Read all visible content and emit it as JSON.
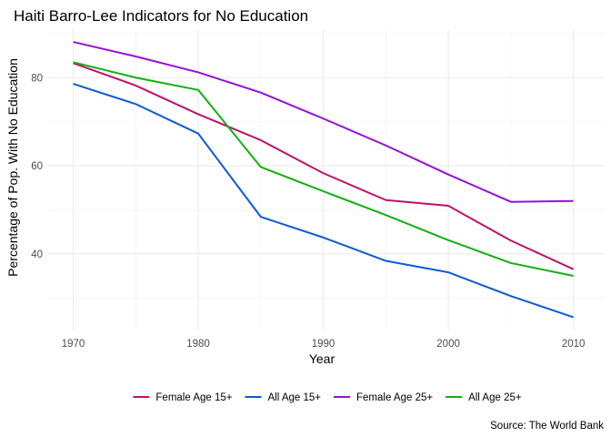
{
  "chart_data": {
    "type": "line",
    "title": "Haiti Barro-Lee Indicators for No Education",
    "xlabel": "Year",
    "ylabel": "Percentage of Pop. With No Education",
    "caption": "Source: The World Bank",
    "x": [
      1970,
      1975,
      1980,
      1985,
      1990,
      1995,
      2000,
      2005,
      2010
    ],
    "xlim": [
      1968,
      2012.5
    ],
    "ylim": [
      22.8,
      90.8
    ],
    "xticks": [
      1970,
      1980,
      1990,
      2000,
      2010
    ],
    "yticks": [
      40,
      60,
      80
    ],
    "grid": true,
    "legend_position": "bottom",
    "series": [
      {
        "name": "Female Age 15+",
        "color": "#c0106a",
        "values": [
          83.3,
          78.2,
          71.7,
          65.8,
          58.3,
          52.2,
          50.9,
          43.0,
          36.5
        ]
      },
      {
        "name": "All Age 15+",
        "color": "#0a5ad6",
        "values": [
          78.6,
          74.0,
          67.3,
          48.4,
          43.7,
          38.4,
          35.8,
          30.4,
          25.6
        ]
      },
      {
        "name": "Female Age 25+",
        "color": "#9510d6",
        "values": [
          88.1,
          84.8,
          81.2,
          76.6,
          70.7,
          64.6,
          58.0,
          51.8,
          52.0
        ]
      },
      {
        "name": "All Age 25+",
        "color": "#10b010",
        "values": [
          83.5,
          80.0,
          77.2,
          59.7,
          54.2,
          48.8,
          43.1,
          37.9,
          35.0
        ]
      }
    ]
  }
}
